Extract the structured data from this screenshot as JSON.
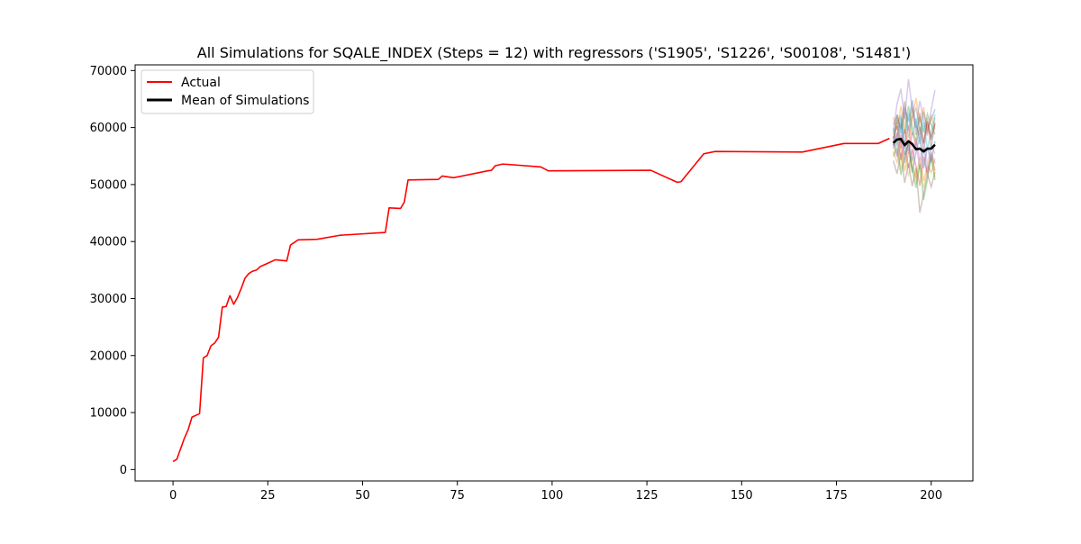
{
  "chart_data": {
    "type": "line",
    "title": "All Simulations for SQALE_INDEX (Steps = 12) with regressors ('S1905', 'S1226', 'S00108', 'S1481')",
    "xlabel": "",
    "ylabel": "",
    "xlim": [
      -10,
      211
    ],
    "ylim": [
      -2000,
      71000
    ],
    "xticks": [
      0,
      25,
      50,
      75,
      100,
      125,
      150,
      175,
      200
    ],
    "yticks": [
      0,
      10000,
      20000,
      30000,
      40000,
      50000,
      60000,
      70000
    ],
    "grid": false,
    "legend_placement": "upper-left",
    "colors": {
      "actual": "#ff0000",
      "mean": "#000000",
      "simulations": [
        "#1f77b4",
        "#ff7f0e",
        "#2ca02c",
        "#d62728",
        "#9467bd",
        "#8c564b",
        "#e377c2",
        "#7f7f7f",
        "#bcbd22",
        "#17becf"
      ]
    },
    "series": [
      {
        "name": "Actual",
        "x": [
          0,
          1,
          3,
          4,
          5,
          7,
          8,
          9,
          10,
          11,
          12,
          13,
          14,
          15,
          16,
          17,
          18,
          19,
          20,
          21,
          22,
          23,
          25,
          27,
          30,
          31,
          33,
          38,
          44,
          56,
          57,
          60,
          61,
          62,
          70,
          71,
          74,
          83,
          84,
          85,
          87,
          97,
          99,
          126,
          133,
          134,
          140,
          143,
          166,
          177,
          186,
          189
        ],
        "y": [
          1400,
          1800,
          5500,
          7000,
          9200,
          9800,
          19600,
          20000,
          21700,
          22200,
          23200,
          28500,
          28600,
          30500,
          29000,
          30200,
          31800,
          33600,
          34400,
          34800,
          35000,
          35600,
          36200,
          36800,
          36600,
          39400,
          40300,
          40400,
          41100,
          41600,
          45900,
          45800,
          46900,
          50800,
          50900,
          51500,
          51200,
          52400,
          52500,
          53300,
          53600,
          53100,
          52400,
          52500,
          50400,
          50500,
          55400,
          55800,
          55700,
          57200,
          57200,
          58100
        ]
      },
      {
        "name": "Mean of Simulations",
        "x": [
          190,
          191,
          192,
          193,
          194,
          195,
          196,
          197,
          198,
          199,
          200,
          201
        ],
        "y": [
          57300,
          57900,
          58000,
          56900,
          57600,
          57100,
          56200,
          56300,
          55800,
          56300,
          56300,
          57000
        ]
      }
    ],
    "simulations": [
      {
        "x": [
          190,
          191,
          192,
          193,
          194,
          195,
          196,
          197,
          198,
          199,
          200,
          201
        ],
        "y": [
          60500,
          62000,
          59000,
          63500,
          61000,
          64800,
          60200,
          58500,
          62800,
          59600,
          61400,
          63200
        ]
      },
      {
        "x": [
          190,
          191,
          192,
          193,
          194,
          195,
          196,
          197,
          198,
          199,
          200,
          201
        ],
        "y": [
          55800,
          53900,
          56800,
          52400,
          55600,
          53000,
          51200,
          54800,
          50600,
          53400,
          52100,
          54600
        ]
      },
      {
        "x": [
          190,
          191,
          192,
          193,
          194,
          195,
          196,
          197,
          198,
          199,
          200,
          201
        ],
        "y": [
          58200,
          60700,
          62100,
          58900,
          63800,
          60100,
          57600,
          61900,
          59200,
          62400,
          60500,
          58800
        ]
      },
      {
        "x": [
          190,
          191,
          192,
          193,
          194,
          195,
          196,
          197,
          198,
          199,
          200,
          201
        ],
        "y": [
          56900,
          59100,
          54300,
          57800,
          52900,
          56100,
          53200,
          49800,
          54900,
          51700,
          55300,
          52400
        ]
      },
      {
        "x": [
          190,
          191,
          192,
          193,
          194,
          195,
          196,
          197,
          198,
          199,
          200,
          201
        ],
        "y": [
          59300,
          64200,
          66800,
          61500,
          68500,
          63200,
          59900,
          64700,
          61300,
          58600,
          63100,
          66600
        ]
      },
      {
        "x": [
          190,
          191,
          192,
          193,
          194,
          195,
          196,
          197,
          198,
          199,
          200,
          201
        ],
        "y": [
          54200,
          51900,
          55600,
          50300,
          53700,
          49700,
          52900,
          45100,
          48400,
          51800,
          49600,
          52200
        ]
      },
      {
        "x": [
          190,
          191,
          192,
          193,
          194,
          195,
          196,
          197,
          198,
          199,
          200,
          201
        ],
        "y": [
          57600,
          55100,
          58900,
          56300,
          60400,
          55600,
          58100,
          54300,
          57900,
          53600,
          56900,
          55400
        ]
      },
      {
        "x": [
          190,
          191,
          192,
          193,
          194,
          195,
          196,
          197,
          198,
          199,
          200,
          201
        ],
        "y": [
          58800,
          61400,
          57300,
          62700,
          58200,
          61900,
          63400,
          59800,
          55900,
          60600,
          57800,
          61800
        ]
      },
      {
        "x": [
          190,
          191,
          192,
          193,
          194,
          195,
          196,
          197,
          198,
          199,
          200,
          201
        ],
        "y": [
          55300,
          57800,
          52600,
          55900,
          51400,
          54900,
          50200,
          53300,
          49400,
          52700,
          55800,
          51300
        ]
      },
      {
        "x": [
          190,
          191,
          192,
          193,
          194,
          195,
          196,
          197,
          198,
          199,
          200,
          201
        ],
        "y": [
          59900,
          56700,
          60800,
          57400,
          62600,
          58700,
          61600,
          57100,
          60900,
          56200,
          59400,
          62300
        ]
      },
      {
        "x": [
          190,
          191,
          192,
          193,
          194,
          195,
          196,
          197,
          198,
          199,
          200,
          201
        ],
        "y": [
          56300,
          58600,
          61700,
          55200,
          57300,
          52100,
          55700,
          58400,
          52800,
          56600,
          53900,
          57600
        ]
      },
      {
        "x": [
          190,
          191,
          192,
          193,
          194,
          195,
          196,
          197,
          198,
          199,
          200,
          201
        ],
        "y": [
          61800,
          59600,
          63700,
          60400,
          56800,
          61700,
          65200,
          60800,
          63600,
          58900,
          62200,
          59700
        ]
      },
      {
        "x": [
          190,
          191,
          192,
          193,
          194,
          195,
          196,
          197,
          198,
          199,
          200,
          201
        ],
        "y": [
          54900,
          56400,
          51700,
          54600,
          57200,
          52600,
          49400,
          53600,
          47300,
          50900,
          54700,
          50800
        ]
      },
      {
        "x": [
          190,
          191,
          192,
          193,
          194,
          195,
          196,
          197,
          198,
          199,
          200,
          201
        ],
        "y": [
          57900,
          60300,
          56400,
          59700,
          55400,
          59200,
          56900,
          60100,
          57300,
          61100,
          58300,
          60600
        ]
      },
      {
        "x": [
          190,
          191,
          192,
          193,
          194,
          195,
          196,
          197,
          198,
          199,
          200,
          201
        ],
        "y": [
          58500,
          54800,
          58200,
          53800,
          57700,
          54200,
          57400,
          52700,
          56400,
          52000,
          55600,
          53700
        ]
      },
      {
        "x": [
          190,
          191,
          192,
          193,
          194,
          195,
          196,
          197,
          198,
          199,
          200,
          201
        ],
        "y": [
          56700,
          62300,
          59800,
          64600,
          59400,
          63600,
          58700,
          62600,
          57200,
          61700,
          56400,
          60900
        ]
      }
    ]
  }
}
